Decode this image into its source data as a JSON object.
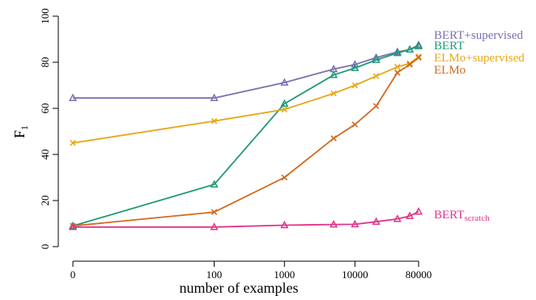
{
  "chart_data": {
    "type": "line",
    "title": "",
    "xlabel": "number of examples",
    "ylabel": "F",
    "ylabel_subscript": "1",
    "ylim": [
      0,
      100
    ],
    "x_ticks": [
      0,
      100,
      1000,
      10000,
      80000
    ],
    "x_tick_labels": [
      "0",
      "100",
      "1000",
      "10000",
      "80000"
    ],
    "y_ticks": [
      0,
      20,
      40,
      60,
      80,
      100
    ],
    "y_tick_labels": [
      "0",
      "20",
      "40",
      "60",
      "80",
      "100"
    ],
    "grid": false,
    "legend_placement": "right, at line ends",
    "series": [
      {
        "name": "BERT+supervised",
        "color": "#7b6fb0",
        "marker": "triangle",
        "x": [
          0,
          100,
          1000,
          5000,
          10000,
          20000,
          40000,
          60000,
          80000
        ],
        "y": [
          64.5,
          64.5,
          71.2,
          77.0,
          79.0,
          82.0,
          84.5,
          85.5,
          87.5
        ]
      },
      {
        "name": "BERT",
        "color": "#1f9a77",
        "marker": "triangle",
        "x": [
          0,
          100,
          1000,
          5000,
          10000,
          20000,
          40000,
          60000,
          80000
        ],
        "y": [
          9.0,
          27.0,
          62.0,
          74.5,
          77.5,
          81.0,
          84.0,
          85.5,
          87.0
        ]
      },
      {
        "name": "ELMo+supervised",
        "color": "#e6a818",
        "marker": "x",
        "x": [
          0,
          100,
          1000,
          5000,
          10000,
          20000,
          40000,
          60000,
          80000
        ],
        "y": [
          45.0,
          54.5,
          59.5,
          66.5,
          70.0,
          74.0,
          78.0,
          79.5,
          82.5
        ]
      },
      {
        "name": "ELMo",
        "color": "#d2691e",
        "marker": "x",
        "x": [
          0,
          100,
          1000,
          5000,
          10000,
          20000,
          40000,
          60000,
          80000
        ],
        "y": [
          9.0,
          15.0,
          30.0,
          47.0,
          53.0,
          61.0,
          75.5,
          79.0,
          82.0
        ]
      },
      {
        "name": "BERT",
        "name_subscript": "scratch",
        "color": "#e0338a",
        "marker": "triangle",
        "x": [
          0,
          100,
          1000,
          5000,
          10000,
          20000,
          40000,
          60000,
          80000
        ],
        "y": [
          8.5,
          8.5,
          9.3,
          9.6,
          9.7,
          10.8,
          12.0,
          13.3,
          15.2
        ]
      }
    ]
  }
}
